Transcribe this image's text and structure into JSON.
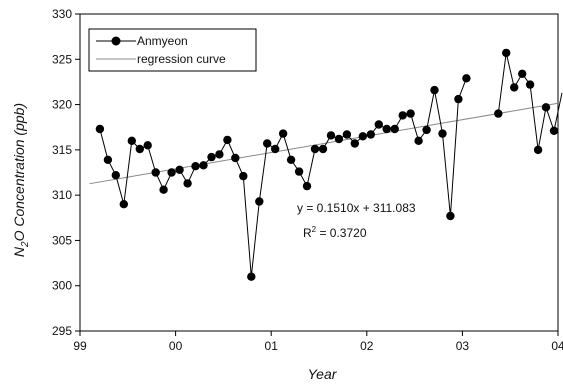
{
  "chart_data": {
    "type": "line",
    "xlabel": "Year",
    "ylabel": "N2O Concentration (ppb)",
    "xlim": [
      0,
      60
    ],
    "ylim": [
      295,
      330
    ],
    "x_ticks": [
      {
        "value": 0,
        "label": "99"
      },
      {
        "value": 12,
        "label": "00"
      },
      {
        "value": 24,
        "label": "01"
      },
      {
        "value": 36,
        "label": "02"
      },
      {
        "value": 48,
        "label": "03"
      },
      {
        "value": 60,
        "label": "04"
      }
    ],
    "y_ticks": [
      295,
      300,
      305,
      310,
      315,
      320,
      325,
      330
    ],
    "series": [
      {
        "name": "Anmyeon",
        "marker": "circle",
        "color": "#000000",
        "x": [
          2.5,
          3.5,
          4.5,
          5.5,
          6.5,
          7.5,
          8.5,
          9.5,
          10.5,
          11.5,
          12.5,
          13.5,
          14.5,
          15.5,
          16.5,
          17.5,
          18.5,
          19.5,
          20.5,
          21.5,
          22.5,
          23.5,
          24.5,
          25.5,
          26.5,
          27.5,
          28.5,
          29.5,
          30.5,
          31.5,
          32.5,
          33.5,
          34.5,
          35.5,
          36.5,
          37.5,
          38.5,
          39.5,
          40.5,
          41.5,
          42.5,
          43.5,
          44.5,
          45.5,
          46.5,
          47.5,
          48.5,
          52.5,
          53.5,
          54.5,
          55.5,
          56.5,
          57.5,
          58.5,
          59.5,
          60.5
        ],
        "y": [
          317.3,
          313.9,
          312.2,
          309.0,
          316.0,
          315.1,
          315.5,
          312.5,
          310.6,
          312.5,
          312.8,
          311.3,
          313.2,
          313.3,
          314.2,
          314.5,
          316.1,
          314.1,
          312.1,
          301.0,
          309.3,
          315.7,
          315.1,
          316.8,
          313.9,
          312.6,
          311.0,
          315.1,
          315.1,
          316.6,
          316.2,
          316.7,
          315.7,
          316.5,
          316.7,
          317.8,
          317.3,
          317.3,
          318.8,
          319.0,
          316.0,
          317.2,
          321.6,
          316.8,
          307.7,
          320.6,
          322.9,
          319.0,
          325.7,
          321.9,
          323.4,
          322.2,
          315.0,
          319.7,
          317.1,
          321.3
        ]
      },
      {
        "name": "regression curve",
        "style": "line",
        "color": "#888888",
        "slope": 0.151,
        "intercept": 311.083
      }
    ],
    "legend": {
      "placement": "top-left",
      "entries": [
        "Anmyeon",
        "regression curve"
      ]
    },
    "annotations": {
      "equation": "y = 0.1510x + 311.083",
      "r2_prefix": "R",
      "r2_exp": "2",
      "r2_value": " = 0.3720"
    },
    "grid": false
  }
}
